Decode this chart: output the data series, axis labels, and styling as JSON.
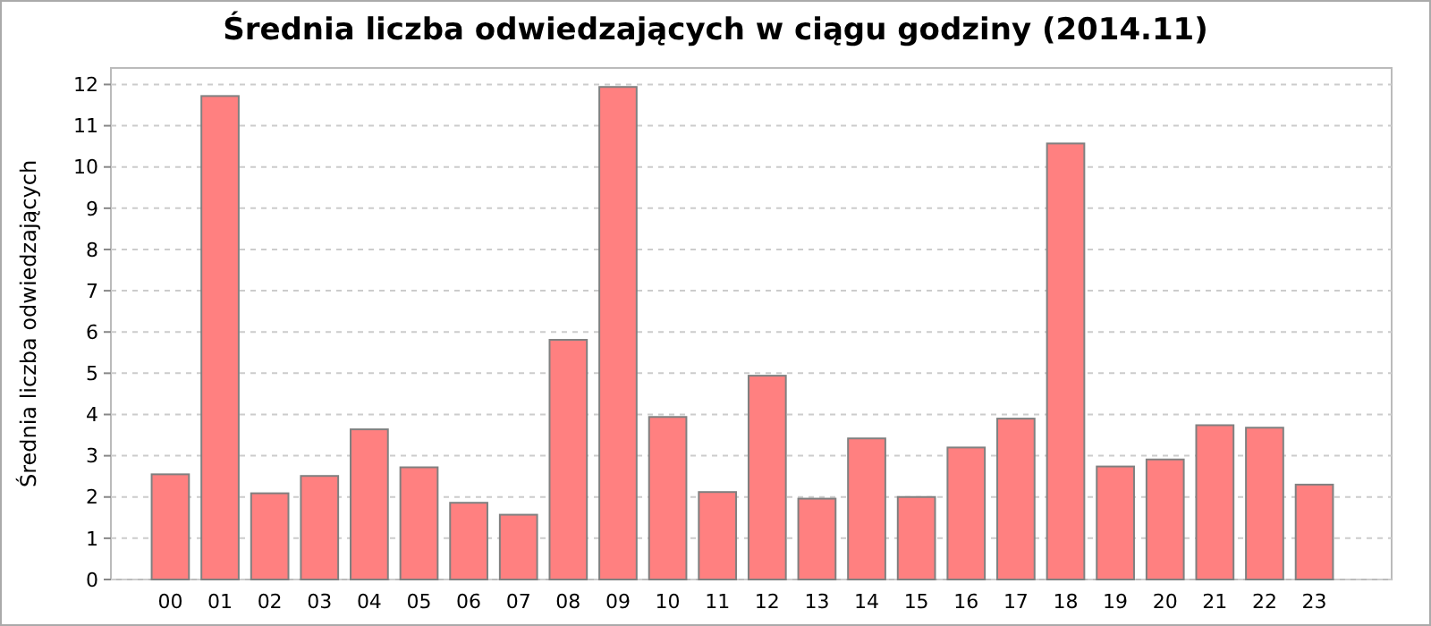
{
  "chart_data": {
    "type": "bar",
    "title": "Średnia liczba odwiedzających w ciągu godziny (2014.11)",
    "ylabel": "Średnia liczba odwiedzających",
    "categories": [
      "00",
      "01",
      "02",
      "03",
      "04",
      "05",
      "06",
      "07",
      "08",
      "09",
      "10",
      "11",
      "12",
      "13",
      "14",
      "15",
      "16",
      "17",
      "18",
      "19",
      "20",
      "21",
      "22",
      "23"
    ],
    "values": [
      2.55,
      11.72,
      2.09,
      2.51,
      3.64,
      2.72,
      1.86,
      1.57,
      5.81,
      11.94,
      3.94,
      2.12,
      4.94,
      1.96,
      3.42,
      2.0,
      3.2,
      3.9,
      10.57,
      2.74,
      2.91,
      3.74,
      3.68,
      2.3
    ],
    "color": "#ff8080",
    "ylim": [
      0,
      12.4
    ],
    "yticks": [
      0,
      1,
      2,
      3,
      4,
      5,
      6,
      7,
      8,
      9,
      10,
      11,
      12
    ],
    "grid": "y"
  }
}
